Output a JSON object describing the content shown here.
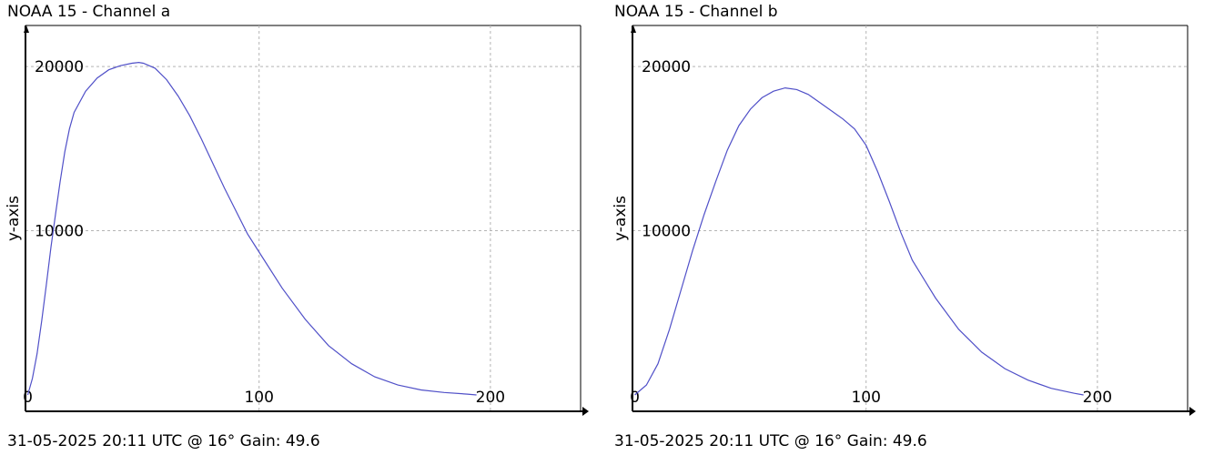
{
  "chart_data": [
    {
      "type": "line",
      "title": "NOAA 15 - Channel a",
      "footer": "31-05-2025 20:11 UTC @ 16° Gain: 49.6",
      "ylabel": "y-axis",
      "xlabel": "",
      "xlim": [
        -1,
        239
      ],
      "ylim": [
        -1000,
        22500
      ],
      "x_ticks": [
        0,
        100,
        200
      ],
      "y_ticks": [
        10000,
        20000
      ],
      "grid": true,
      "colors": {
        "line": "#5050c8",
        "grid": "#b4b4b4",
        "axis": "#000000"
      },
      "series": [
        {
          "x": [
            0,
            2,
            4,
            6,
            8,
            10,
            12,
            14,
            16,
            18,
            20,
            25,
            30,
            35,
            40,
            45,
            48,
            50,
            55,
            60,
            65,
            70,
            75,
            80,
            85,
            90,
            95,
            100,
            110,
            120,
            130,
            140,
            150,
            160,
            170,
            180,
            190,
            194
          ],
          "y": [
            0,
            1000,
            2500,
            4500,
            6700,
            9000,
            11000,
            13000,
            14800,
            16200,
            17200,
            18500,
            19300,
            19800,
            20050,
            20200,
            20250,
            20200,
            19900,
            19200,
            18200,
            17000,
            15600,
            14100,
            12600,
            11200,
            9800,
            8700,
            6500,
            4600,
            3000,
            1900,
            1100,
            600,
            300,
            150,
            50,
            0
          ]
        }
      ]
    },
    {
      "type": "line",
      "title": "NOAA 15 - Channel b",
      "footer": "31-05-2025 20:11 UTC @ 16° Gain: 49.6",
      "ylabel": "y-axis",
      "xlabel": "",
      "xlim": [
        -1,
        239
      ],
      "ylim": [
        -1000,
        22500
      ],
      "x_ticks": [
        0,
        100,
        200
      ],
      "y_ticks": [
        10000,
        20000
      ],
      "grid": true,
      "colors": {
        "line": "#5050c8",
        "grid": "#b4b4b4",
        "axis": "#000000"
      },
      "series": [
        {
          "x": [
            0,
            5,
            10,
            15,
            20,
            25,
            30,
            35,
            40,
            45,
            50,
            55,
            60,
            65,
            70,
            75,
            80,
            85,
            90,
            95,
            100,
            105,
            110,
            115,
            120,
            130,
            140,
            150,
            160,
            170,
            180,
            190,
            194
          ],
          "y": [
            0,
            600,
            1900,
            4000,
            6400,
            8800,
            11000,
            13000,
            14900,
            16400,
            17400,
            18100,
            18500,
            18700,
            18600,
            18300,
            17800,
            17300,
            16800,
            16200,
            15200,
            13600,
            11800,
            9900,
            8200,
            5900,
            4000,
            2600,
            1600,
            900,
            400,
            100,
            0
          ]
        }
      ]
    }
  ]
}
